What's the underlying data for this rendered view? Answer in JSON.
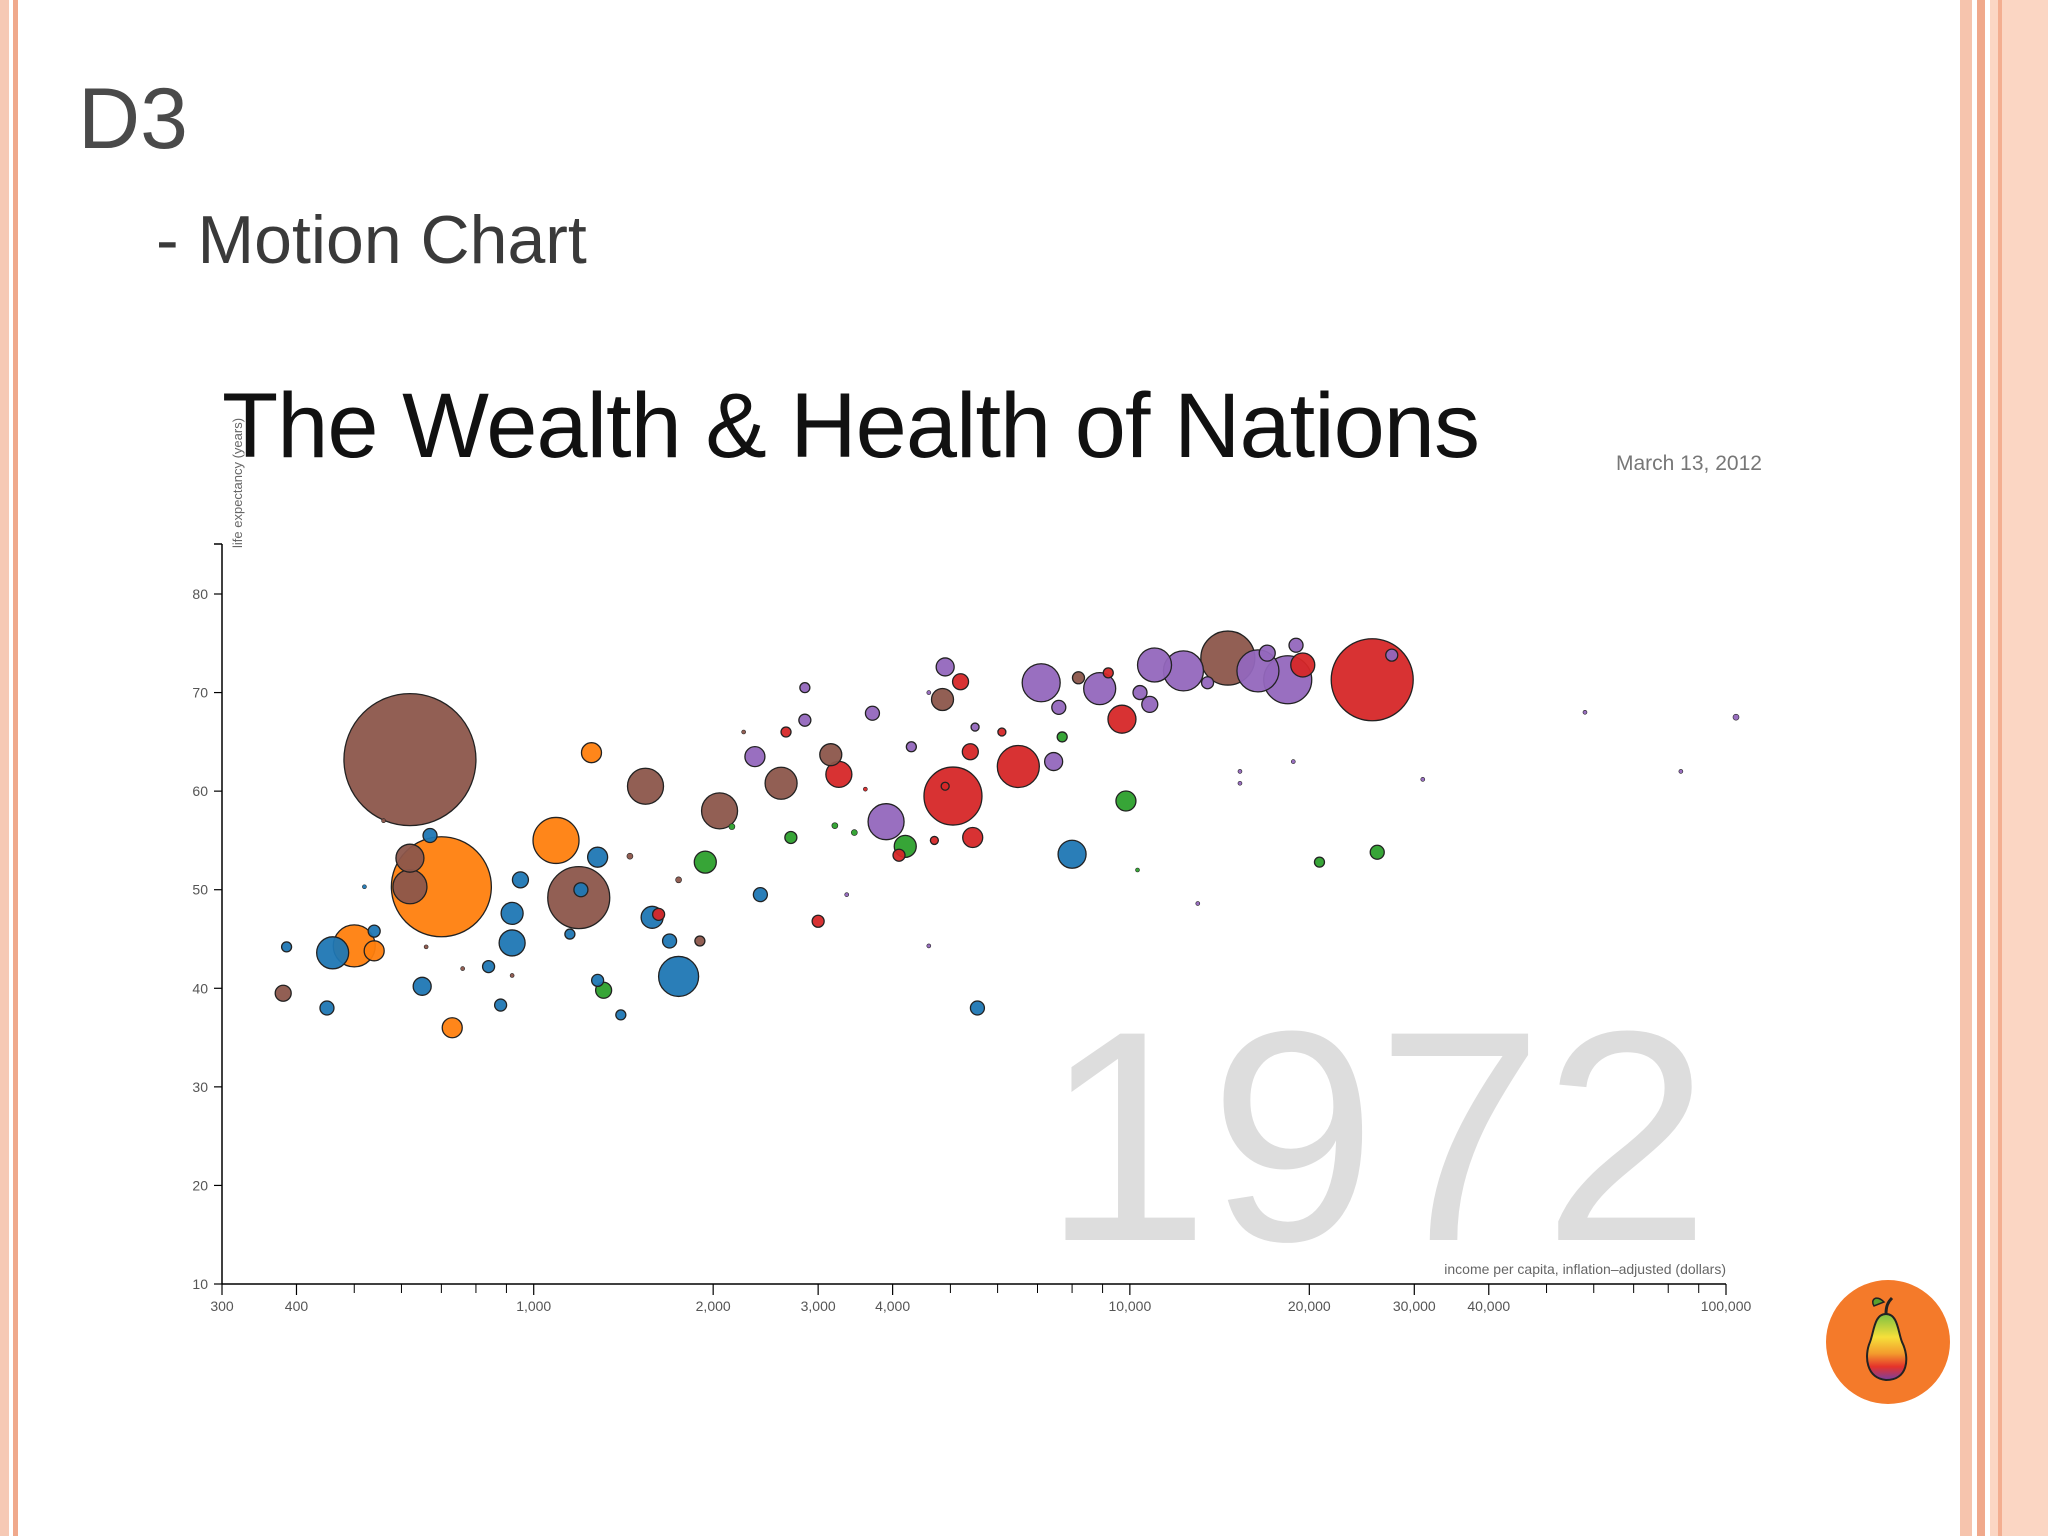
{
  "slide": {
    "title": "D3",
    "bullet": "- Motion Chart"
  },
  "colors": {
    "brown": "#8c564b",
    "orange": "#ff7f0e",
    "blue": "#1f77b4",
    "purple": "#9467bd",
    "red": "#d62728",
    "green": "#2ca02c",
    "year_watermark": "#dddddd",
    "logo": "#f47a2a"
  },
  "chart_data": {
    "type": "scatter",
    "title": "The Wealth & Health of Nations",
    "date": "March 13, 2012",
    "xlabel": "income per capita, inflation–adjusted (dollars)",
    "ylabel": "life expectancy (years)",
    "x_scale": "log",
    "xlim": [
      300,
      100000
    ],
    "ylim": [
      10,
      85
    ],
    "x_ticks": [
      300,
      400,
      1000,
      2000,
      3000,
      4000,
      10000,
      20000,
      30000,
      40000,
      100000
    ],
    "x_tick_labels": [
      "300",
      "400",
      "1,000",
      "2,000",
      "3,000",
      "4,000",
      "10,000",
      "20,000",
      "30,000",
      "40,000",
      "100,000"
    ],
    "y_ticks": [
      10,
      20,
      30,
      40,
      50,
      60,
      70,
      80
    ],
    "y_tick_labels": [
      "10",
      "20",
      "30",
      "40",
      "50",
      "60",
      "70",
      "80"
    ],
    "year": "1972",
    "grid": false,
    "points": [
      {
        "x": 620,
        "y": 63.2,
        "r": 66,
        "c": "brown"
      },
      {
        "x": 700,
        "y": 50.3,
        "r": 50,
        "c": "orange"
      },
      {
        "x": 620,
        "y": 53.2,
        "r": 14,
        "c": "brown"
      },
      {
        "x": 620,
        "y": 50.3,
        "r": 17,
        "c": "brown"
      },
      {
        "x": 1090,
        "y": 55.0,
        "r": 23,
        "c": "orange"
      },
      {
        "x": 1190,
        "y": 49.2,
        "r": 31,
        "c": "brown"
      },
      {
        "x": 1200,
        "y": 50.0,
        "r": 7,
        "c": "blue"
      },
      {
        "x": 500,
        "y": 44.3,
        "r": 21,
        "c": "orange"
      },
      {
        "x": 540,
        "y": 43.8,
        "r": 10,
        "c": "orange"
      },
      {
        "x": 460,
        "y": 43.6,
        "r": 16,
        "c": "blue"
      },
      {
        "x": 1250,
        "y": 63.9,
        "r": 10,
        "c": "orange"
      },
      {
        "x": 1540,
        "y": 60.5,
        "r": 18,
        "c": "brown"
      },
      {
        "x": 2050,
        "y": 58.0,
        "r": 18,
        "c": "brown"
      },
      {
        "x": 2600,
        "y": 60.8,
        "r": 16,
        "c": "brown"
      },
      {
        "x": 3150,
        "y": 63.7,
        "r": 11,
        "c": "brown"
      },
      {
        "x": 3250,
        "y": 61.7,
        "r": 13,
        "c": "red"
      },
      {
        "x": 5050,
        "y": 59.5,
        "r": 29,
        "c": "red"
      },
      {
        "x": 6500,
        "y": 62.5,
        "r": 21,
        "c": "red"
      },
      {
        "x": 7450,
        "y": 63.0,
        "r": 9,
        "c": "purple"
      },
      {
        "x": 25500,
        "y": 71.3,
        "r": 41,
        "c": "red"
      },
      {
        "x": 14600,
        "y": 73.5,
        "r": 27,
        "c": "brown"
      },
      {
        "x": 18400,
        "y": 71.3,
        "r": 24,
        "c": "purple"
      },
      {
        "x": 16400,
        "y": 72.2,
        "r": 21,
        "c": "purple"
      },
      {
        "x": 12300,
        "y": 72.2,
        "r": 20,
        "c": "purple"
      },
      {
        "x": 11000,
        "y": 72.8,
        "r": 17,
        "c": "purple"
      },
      {
        "x": 7100,
        "y": 71.0,
        "r": 19,
        "c": "purple"
      },
      {
        "x": 8900,
        "y": 70.4,
        "r": 16,
        "c": "purple"
      },
      {
        "x": 3900,
        "y": 56.9,
        "r": 18,
        "c": "purple"
      },
      {
        "x": 8000,
        "y": 53.6,
        "r": 14,
        "c": "blue"
      },
      {
        "x": 1750,
        "y": 41.2,
        "r": 20,
        "c": "blue"
      },
      {
        "x": 920,
        "y": 44.6,
        "r": 13,
        "c": "blue"
      },
      {
        "x": 920,
        "y": 47.6,
        "r": 11,
        "c": "blue"
      },
      {
        "x": 1580,
        "y": 47.2,
        "r": 11,
        "c": "blue"
      },
      {
        "x": 9700,
        "y": 67.3,
        "r": 14,
        "c": "red"
      },
      {
        "x": 19500,
        "y": 72.8,
        "r": 12,
        "c": "red"
      },
      {
        "x": 730,
        "y": 36.0,
        "r": 10,
        "c": "orange"
      },
      {
        "x": 1280,
        "y": 53.3,
        "r": 10,
        "c": "blue"
      },
      {
        "x": 1940,
        "y": 52.8,
        "r": 11,
        "c": "green"
      },
      {
        "x": 9850,
        "y": 59.0,
        "r": 10,
        "c": "green"
      },
      {
        "x": 5450,
        "y": 55.3,
        "r": 10,
        "c": "red"
      },
      {
        "x": 4200,
        "y": 54.4,
        "r": 11,
        "c": "green"
      },
      {
        "x": 3700,
        "y": 67.9,
        "r": 7,
        "c": "purple"
      },
      {
        "x": 4850,
        "y": 69.3,
        "r": 11,
        "c": "brown"
      },
      {
        "x": 2350,
        "y": 63.5,
        "r": 10,
        "c": "purple"
      },
      {
        "x": 5200,
        "y": 71.1,
        "r": 8,
        "c": "red"
      },
      {
        "x": 4900,
        "y": 72.6,
        "r": 9,
        "c": "purple"
      },
      {
        "x": 380,
        "y": 39.5,
        "r": 8,
        "c": "brown"
      },
      {
        "x": 450,
        "y": 38.0,
        "r": 7,
        "c": "blue"
      },
      {
        "x": 650,
        "y": 40.2,
        "r": 9,
        "c": "blue"
      },
      {
        "x": 950,
        "y": 51.0,
        "r": 8,
        "c": "blue"
      },
      {
        "x": 670,
        "y": 55.5,
        "r": 7,
        "c": "blue"
      },
      {
        "x": 1690,
        "y": 44.8,
        "r": 7,
        "c": "blue"
      },
      {
        "x": 1310,
        "y": 39.8,
        "r": 8,
        "c": "green"
      },
      {
        "x": 2400,
        "y": 49.5,
        "r": 7,
        "c": "blue"
      },
      {
        "x": 5550,
        "y": 38.0,
        "r": 7,
        "c": "blue"
      },
      {
        "x": 26000,
        "y": 53.8,
        "r": 7,
        "c": "green"
      },
      {
        "x": 2700,
        "y": 55.3,
        "r": 6,
        "c": "green"
      },
      {
        "x": 3000,
        "y": 46.8,
        "r": 6,
        "c": "red"
      },
      {
        "x": 4100,
        "y": 53.5,
        "r": 6,
        "c": "red"
      },
      {
        "x": 5400,
        "y": 64.0,
        "r": 8,
        "c": "red"
      },
      {
        "x": 7700,
        "y": 65.5,
        "r": 5,
        "c": "green"
      },
      {
        "x": 1620,
        "y": 47.5,
        "r": 6,
        "c": "red"
      },
      {
        "x": 2850,
        "y": 67.2,
        "r": 6,
        "c": "purple"
      },
      {
        "x": 2850,
        "y": 70.5,
        "r": 5,
        "c": "purple"
      },
      {
        "x": 1280,
        "y": 40.8,
        "r": 6,
        "c": "blue"
      },
      {
        "x": 1400,
        "y": 37.3,
        "r": 5,
        "c": "blue"
      },
      {
        "x": 840,
        "y": 42.2,
        "r": 6,
        "c": "blue"
      },
      {
        "x": 540,
        "y": 45.8,
        "r": 6,
        "c": "blue"
      },
      {
        "x": 385,
        "y": 44.2,
        "r": 5,
        "c": "blue"
      },
      {
        "x": 1150,
        "y": 45.5,
        "r": 5,
        "c": "blue"
      },
      {
        "x": 880,
        "y": 38.3,
        "r": 6,
        "c": "blue"
      },
      {
        "x": 7600,
        "y": 68.5,
        "r": 7,
        "c": "purple"
      },
      {
        "x": 8200,
        "y": 71.5,
        "r": 6,
        "c": "brown"
      },
      {
        "x": 9200,
        "y": 72.0,
        "r": 5,
        "c": "red"
      },
      {
        "x": 10400,
        "y": 70.0,
        "r": 7,
        "c": "purple"
      },
      {
        "x": 10800,
        "y": 68.8,
        "r": 8,
        "c": "purple"
      },
      {
        "x": 13500,
        "y": 71.0,
        "r": 6,
        "c": "purple"
      },
      {
        "x": 20800,
        "y": 52.8,
        "r": 5,
        "c": "green"
      },
      {
        "x": 27500,
        "y": 73.8,
        "r": 6,
        "c": "purple"
      },
      {
        "x": 19000,
        "y": 74.8,
        "r": 7,
        "c": "purple"
      },
      {
        "x": 17000,
        "y": 74.0,
        "r": 8,
        "c": "purple"
      },
      {
        "x": 4300,
        "y": 64.5,
        "r": 5,
        "c": "purple"
      },
      {
        "x": 5500,
        "y": 66.5,
        "r": 4,
        "c": "purple"
      },
      {
        "x": 6100,
        "y": 66.0,
        "r": 4,
        "c": "red"
      },
      {
        "x": 2650,
        "y": 66.0,
        "r": 5,
        "c": "red"
      },
      {
        "x": 4900,
        "y": 60.5,
        "r": 4,
        "c": "red"
      },
      {
        "x": 1900,
        "y": 44.8,
        "r": 5,
        "c": "brown"
      },
      {
        "x": 110000,
        "y": 67.5,
        "r": 3,
        "c": "purple"
      },
      {
        "x": 58000,
        "y": 68.0,
        "r": 2,
        "c": "purple"
      },
      {
        "x": 84000,
        "y": 62.0,
        "r": 2,
        "c": "purple"
      },
      {
        "x": 31000,
        "y": 61.2,
        "r": 2,
        "c": "purple"
      },
      {
        "x": 13000,
        "y": 48.6,
        "r": 2,
        "c": "purple"
      },
      {
        "x": 10300,
        "y": 52.0,
        "r": 2,
        "c": "green"
      },
      {
        "x": 3350,
        "y": 49.5,
        "r": 2,
        "c": "purple"
      },
      {
        "x": 4600,
        "y": 44.3,
        "r": 2,
        "c": "purple"
      },
      {
        "x": 18800,
        "y": 63.0,
        "r": 2,
        "c": "purple"
      },
      {
        "x": 15300,
        "y": 62.0,
        "r": 2,
        "c": "purple"
      },
      {
        "x": 15300,
        "y": 60.8,
        "r": 2,
        "c": "purple"
      },
      {
        "x": 660,
        "y": 44.2,
        "r": 2,
        "c": "brown"
      },
      {
        "x": 760,
        "y": 42.0,
        "r": 2,
        "c": "brown"
      },
      {
        "x": 920,
        "y": 41.3,
        "r": 2,
        "c": "brown"
      },
      {
        "x": 1450,
        "y": 53.4,
        "r": 3,
        "c": "brown"
      },
      {
        "x": 1750,
        "y": 51.0,
        "r": 3,
        "c": "brown"
      },
      {
        "x": 2150,
        "y": 56.4,
        "r": 3,
        "c": "green"
      },
      {
        "x": 3200,
        "y": 56.5,
        "r": 3,
        "c": "green"
      },
      {
        "x": 3450,
        "y": 55.8,
        "r": 3,
        "c": "green"
      },
      {
        "x": 4600,
        "y": 70.0,
        "r": 2,
        "c": "purple"
      },
      {
        "x": 3600,
        "y": 60.2,
        "r": 2,
        "c": "red"
      },
      {
        "x": 4700,
        "y": 55.0,
        "r": 4,
        "c": "red"
      },
      {
        "x": 2250,
        "y": 66.0,
        "r": 2,
        "c": "brown"
      },
      {
        "x": 560,
        "y": 57.0,
        "r": 2,
        "c": "brown"
      },
      {
        "x": 520,
        "y": 50.3,
        "r": 2,
        "c": "blue"
      }
    ]
  },
  "logo": {
    "icon": "pear-icon"
  }
}
